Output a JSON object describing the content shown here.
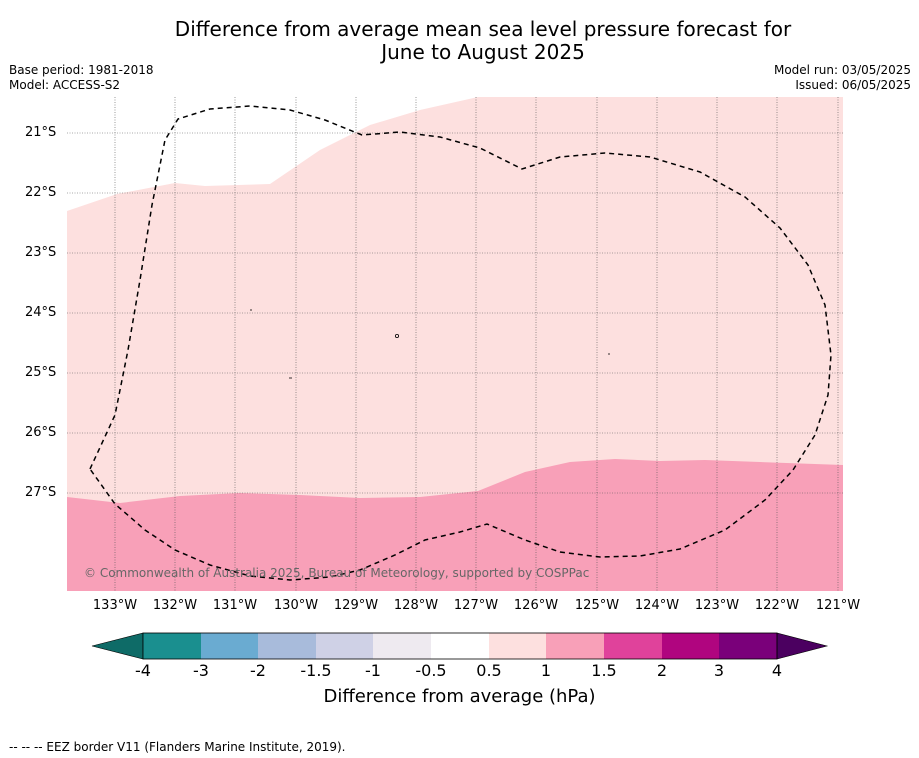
{
  "title_line1": "Difference from average mean sea level pressure forecast for",
  "title_line2": "June to August 2025",
  "base_period": "Base period: 1981-2018",
  "model": "Model: ACCESS-S2",
  "model_run": "Model run: 03/05/2025",
  "issued": "Issued: 06/05/2025",
  "latitudes": [
    "21°S",
    "22°S",
    "23°S",
    "24°S",
    "25°S",
    "26°S",
    "27°S"
  ],
  "longitudes": [
    "133°W",
    "132°W",
    "131°W",
    "130°W",
    "129°W",
    "128°W",
    "127°W",
    "126°W",
    "125°W",
    "124°W",
    "123°W",
    "122°W",
    "121°W"
  ],
  "credit": "© Commonwealth of Australia 2025, Bureau of Meteorology, supported by COSPPac",
  "colorbar": {
    "ticks": [
      "-4",
      "-3",
      "-2",
      "-1.5",
      "-1",
      "-0.5",
      "0.5",
      "1",
      "1.5",
      "2",
      "3",
      "4"
    ],
    "colors": [
      "#1a8f8f",
      "#6aabd1",
      "#a8bbdb",
      "#cfd1e6",
      "#eeeaf0",
      "#ffffff",
      "#fde0df",
      "#f8a0b8",
      "#e0429b",
      "#b0057f",
      "#7a007a"
    ],
    "low_extend_color": "#0e6b67",
    "high_extend_color": "#4b0060",
    "label": "Difference from average (hPa)"
  },
  "map_colors": {
    "category_0_5_to_1": "#fde0df",
    "category_1_to_1_5": "#f8a0b8"
  },
  "footnote": "--  --  -- EEZ border V11 (Flanders Marine Institute, 2019)."
}
